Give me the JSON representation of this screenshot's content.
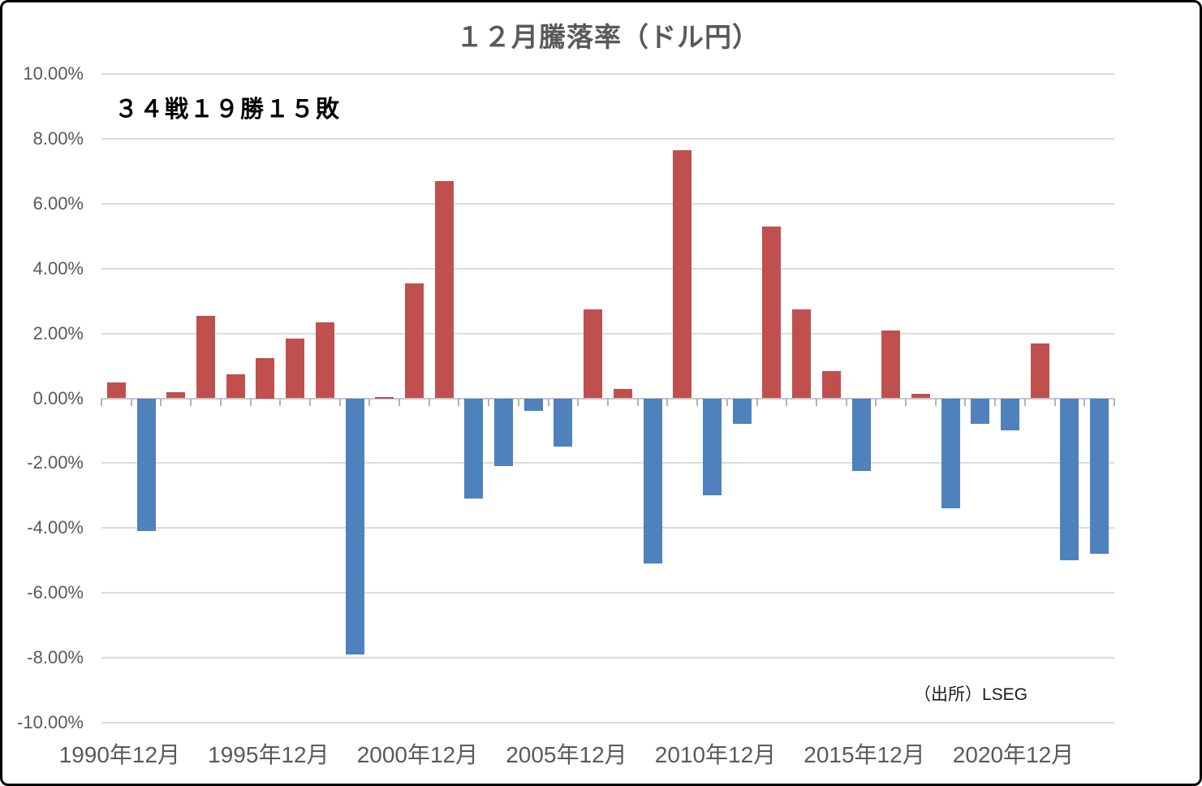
{
  "chart_data": {
    "type": "bar",
    "title": "１２月騰落率（ドル円）",
    "annotation": "３４戦１９勝１５敗",
    "source_note": "（出所）LSEG",
    "unit": "%",
    "categories": [
      "1990年12月",
      "1991年12月",
      "1992年12月",
      "1993年12月",
      "1994年12月",
      "1995年12月",
      "1996年12月",
      "1997年12月",
      "1998年12月",
      "1999年12月",
      "2000年12月",
      "2001年12月",
      "2002年12月",
      "2003年12月",
      "2004年12月",
      "2005年12月",
      "2006年12月",
      "2007年12月",
      "2008年12月",
      "2009年12月",
      "2010年12月",
      "2011年12月",
      "2012年12月",
      "2013年12月",
      "2014年12月",
      "2015年12月",
      "2016年12月",
      "2017年12月",
      "2018年12月",
      "2019年12月",
      "2020年12月",
      "2021年12月",
      "2022年12月",
      "2023年12月"
    ],
    "values": [
      0.5,
      -4.1,
      0.2,
      2.55,
      0.75,
      1.25,
      1.85,
      2.35,
      -7.9,
      0.05,
      3.55,
      6.7,
      -3.1,
      -2.1,
      -0.4,
      -1.5,
      2.75,
      0.3,
      -5.1,
      7.65,
      -3.0,
      -0.8,
      5.3,
      2.75,
      0.85,
      -2.25,
      2.1,
      0.15,
      -3.4,
      -0.8,
      -1.0,
      1.7,
      -5.0,
      -4.8
    ],
    "x_tick_labels": [
      "1990年12月",
      "1995年12月",
      "2000年12月",
      "2005年12月",
      "2010年12月",
      "2015年12月",
      "2020年12月"
    ],
    "x_tick_label_every": 5,
    "y_tick_labels": [
      "10.00%",
      "8.00%",
      "6.00%",
      "4.00%",
      "2.00%",
      "0.00%",
      "-2.00%",
      "-4.00%",
      "-6.00%",
      "-8.00%",
      "-10.00%"
    ],
    "y_tick_values": [
      10,
      8,
      6,
      4,
      2,
      0,
      -2,
      -4,
      -6,
      -8,
      -10
    ],
    "ylim": [
      -10,
      10
    ],
    "grid": true,
    "legend_position": "none",
    "positive_color": "#C0504D",
    "negative_color": "#4F81BD"
  },
  "colors": {
    "grid": "#DCDCDC",
    "zero_axis": "#C6C6C6",
    "tick": "#B3B3B3",
    "title_text": "#595959",
    "axis_text": "#595959"
  }
}
